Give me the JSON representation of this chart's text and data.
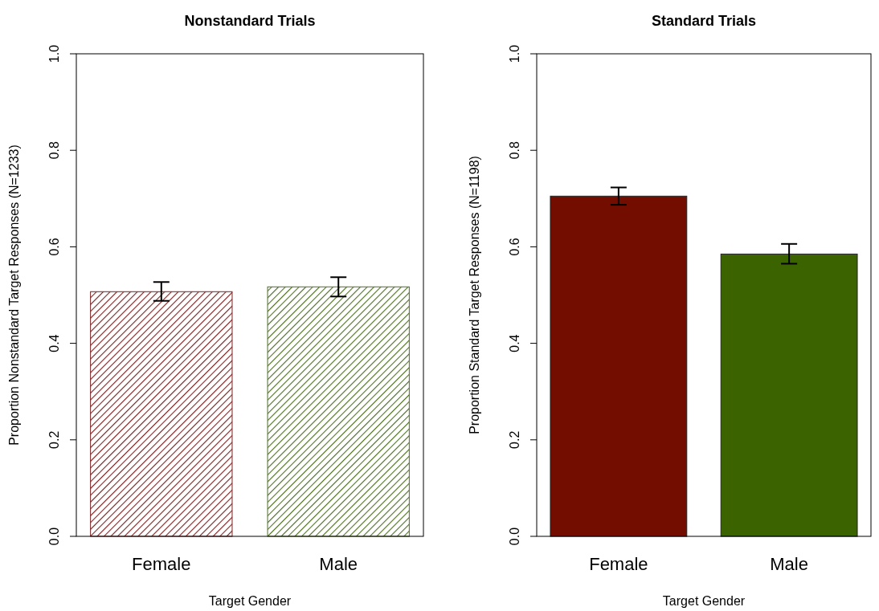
{
  "chart_data": [
    {
      "type": "bar",
      "title": "Nonstandard Trials",
      "xlabel": "Target Gender",
      "ylabel": "Proportion Nonstandard Target Responses (N=1233)",
      "categories": [
        "Female",
        "Male"
      ],
      "values": [
        0.507,
        0.517
      ],
      "errors": [
        [
          0.488,
          0.527
        ],
        [
          0.497,
          0.537
        ]
      ],
      "colors": [
        "#7a2020",
        "#4f6e22"
      ],
      "ylim": [
        0,
        1
      ],
      "yticks": [
        {
          "value": 0,
          "label": "0.0"
        },
        {
          "value": 0.2,
          "label": "0.2"
        },
        {
          "value": 0.4,
          "label": "0.4"
        },
        {
          "value": 0.6,
          "label": "0.6"
        },
        {
          "value": 0.8,
          "label": "0.8"
        },
        {
          "value": 1,
          "label": "1.0"
        }
      ],
      "grid": false
    },
    {
      "type": "bar",
      "title": "Standard Trials",
      "xlabel": "Target Gender",
      "ylabel": "Proportion Standard Target Responses (N=1198)",
      "categories": [
        "Female",
        "Male"
      ],
      "values": [
        0.705,
        0.585
      ],
      "errors": [
        [
          0.687,
          0.723
        ],
        [
          0.565,
          0.606
        ]
      ],
      "colors": [
        "#730d00",
        "#3b6300"
      ],
      "ylim": [
        0,
        1
      ],
      "yticks": [
        {
          "value": 0,
          "label": "0.0"
        },
        {
          "value": 0.2,
          "label": "0.2"
        },
        {
          "value": 0.4,
          "label": "0.4"
        },
        {
          "value": 0.6,
          "label": "0.6"
        },
        {
          "value": 0.8,
          "label": "0.8"
        },
        {
          "value": 1,
          "label": "1.0"
        }
      ],
      "grid": false
    }
  ]
}
